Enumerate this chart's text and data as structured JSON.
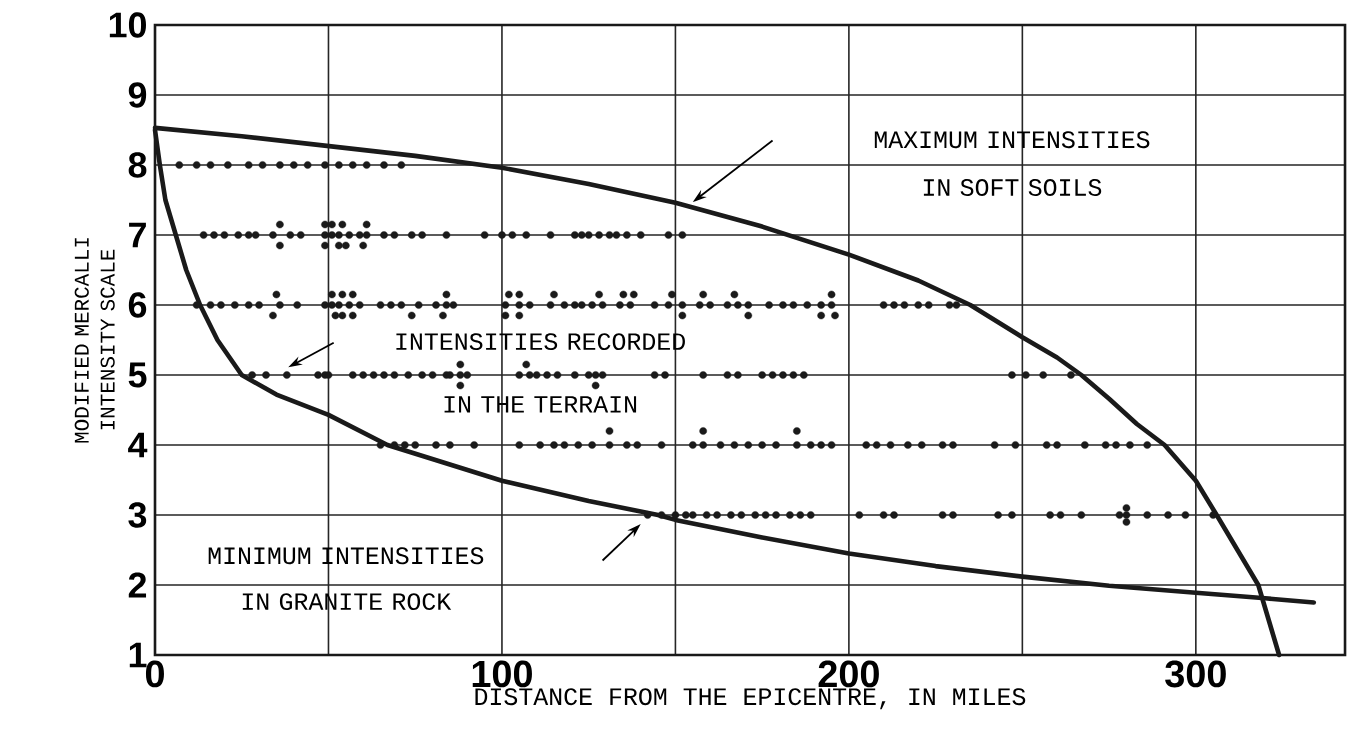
{
  "chart_data": {
    "type": "scatter",
    "xlabel": "DISTANCE FROM THE EPICENTRE, IN MILES",
    "ylabel": "MODIFIED MERCALLI INTENSITY SCALE",
    "annotations": [
      "MAXIMUM INTENSITIES IN SOFT SOILS",
      "INTENSITIES RECORDED IN THE TERRAIN",
      "MINIMUM INTENSITIES IN GRANITE ROCK"
    ],
    "xlim": [
      0,
      343
    ],
    "ylim": [
      1,
      10
    ],
    "xticks": [
      0,
      {
        "value": 50,
        "label": null
      },
      100,
      {
        "value": 150,
        "label": null
      },
      200,
      {
        "value": 250,
        "label": null
      },
      300
    ],
    "yticks": [
      1,
      2,
      3,
      4,
      5,
      6,
      7,
      8,
      9,
      10
    ],
    "grid": true,
    "marker": "circle",
    "series": [
      {
        "color": "#1a1a1a",
        "x": [
          7,
          12,
          16,
          21,
          27,
          31,
          36,
          40,
          44,
          49,
          53,
          57,
          61,
          66,
          71
        ],
        "values": [
          8,
          8,
          8,
          8,
          8,
          8,
          8,
          8,
          8,
          8,
          8,
          8,
          8,
          8,
          8
        ]
      },
      {
        "color": "#1a1a1a",
        "x": [
          36,
          49,
          51,
          54,
          61
        ],
        "values": [
          7.15,
          7.15,
          7.15,
          7.15,
          7.15
        ]
      },
      {
        "color": "#1a1a1a",
        "x": [
          14,
          17,
          20,
          24,
          27,
          29,
          34,
          39,
          42,
          49,
          51,
          53,
          56,
          59,
          61,
          66,
          69,
          74,
          77,
          84,
          95,
          100,
          103,
          107,
          114,
          121,
          123,
          125,
          128,
          131,
          133,
          136,
          140,
          148,
          152
        ],
        "values": [
          7,
          7,
          7,
          7,
          7,
          7,
          7,
          7,
          7,
          7,
          7,
          7,
          7,
          7,
          7,
          7,
          7,
          7,
          7,
          7,
          7,
          7,
          7,
          7,
          7,
          7,
          7,
          7,
          7,
          7,
          7,
          7,
          7,
          7,
          7
        ]
      },
      {
        "color": "#1a1a1a",
        "x": [
          36,
          49,
          53,
          55,
          60
        ],
        "values": [
          6.85,
          6.85,
          6.85,
          6.85,
          6.85
        ]
      },
      {
        "color": "#1a1a1a",
        "x": [
          35,
          51,
          54,
          57,
          84,
          102,
          105,
          115,
          128,
          135,
          138,
          149,
          158,
          167,
          195
        ],
        "values": [
          6.15,
          6.15,
          6.15,
          6.15,
          6.15,
          6.15,
          6.15,
          6.15,
          6.15,
          6.15,
          6.15,
          6.15,
          6.15,
          6.15,
          6.15
        ]
      },
      {
        "color": "#1a1a1a",
        "x": [
          12,
          16,
          19,
          23,
          27,
          30,
          36,
          41,
          49,
          51,
          53,
          56,
          59,
          65,
          68,
          71,
          76,
          81,
          84,
          86,
          101,
          105,
          108,
          114,
          118,
          121,
          123,
          126,
          129,
          134,
          137,
          144,
          148,
          152,
          157,
          160,
          165,
          168,
          171,
          177,
          181,
          184,
          188,
          192,
          195,
          210,
          213,
          216,
          220,
          223,
          229,
          231
        ],
        "values": [
          6,
          6,
          6,
          6,
          6,
          6,
          6,
          6,
          6,
          6,
          6,
          6,
          6,
          6,
          6,
          6,
          6,
          6,
          6,
          6,
          6,
          6,
          6,
          6,
          6,
          6,
          6,
          6,
          6,
          6,
          6,
          6,
          6,
          6,
          6,
          6,
          6,
          6,
          6,
          6,
          6,
          6,
          6,
          6,
          6,
          6,
          6,
          6,
          6,
          6,
          6,
          6
        ]
      },
      {
        "color": "#1a1a1a",
        "x": [
          34,
          52,
          54,
          57,
          74,
          83,
          101,
          105,
          152,
          171,
          192,
          196
        ],
        "values": [
          5.85,
          5.85,
          5.85,
          5.85,
          5.85,
          5.85,
          5.85,
          5.85,
          5.85,
          5.85,
          5.85,
          5.85
        ]
      },
      {
        "color": "#1a1a1a",
        "x": [
          88,
          107
        ],
        "values": [
          5.15,
          5.15
        ]
      },
      {
        "color": "#1a1a1a",
        "x": [
          28,
          32,
          38,
          47,
          49,
          50,
          57,
          60,
          63,
          66,
          69,
          73,
          77,
          80,
          84,
          85,
          88,
          90,
          105,
          108,
          110,
          113,
          116,
          121,
          125,
          127,
          129,
          144,
          147,
          158,
          165,
          168,
          175,
          178,
          181,
          184,
          187,
          247,
          251,
          256,
          264
        ],
        "values": [
          5,
          5,
          5,
          5,
          5,
          5,
          5,
          5,
          5,
          5,
          5,
          5,
          5,
          5,
          5,
          5,
          5,
          5,
          5,
          5,
          5,
          5,
          5,
          5,
          5,
          5,
          5,
          5,
          5,
          5,
          5,
          5,
          5,
          5,
          5,
          5,
          5,
          5,
          5,
          5,
          5
        ]
      },
      {
        "color": "#1a1a1a",
        "x": [
          88,
          127
        ],
        "values": [
          4.85,
          4.85
        ]
      },
      {
        "color": "#1a1a1a",
        "x": [
          131,
          158,
          185
        ],
        "values": [
          4.2,
          4.2,
          4.2
        ]
      },
      {
        "color": "#1a1a1a",
        "x": [
          65,
          69,
          72,
          75,
          81,
          85,
          92,
          105,
          111,
          115,
          118,
          122,
          126,
          131,
          136,
          139,
          146,
          155,
          158,
          163,
          167,
          171,
          175,
          179,
          185,
          189,
          192,
          195,
          205,
          208,
          212,
          217,
          221,
          227,
          230,
          242,
          248,
          257,
          260,
          268,
          274,
          277,
          281,
          286
        ],
        "values": [
          4,
          4,
          4,
          4,
          4,
          4,
          4,
          4,
          4,
          4,
          4,
          4,
          4,
          4,
          4,
          4,
          4,
          4,
          4,
          4,
          4,
          4,
          4,
          4,
          4,
          4,
          4,
          4,
          4,
          4,
          4,
          4,
          4,
          4,
          4,
          4,
          4,
          4,
          4,
          4,
          4,
          4,
          4,
          4
        ]
      },
      {
        "color": "#1a1a1a",
        "x": [
          280
        ],
        "values": [
          3.1
        ]
      },
      {
        "color": "#1a1a1a",
        "x": [
          142,
          146,
          150,
          153,
          155,
          159,
          162,
          166,
          169,
          173,
          176,
          179,
          183,
          186,
          189,
          203,
          210,
          213,
          227,
          230,
          243,
          247,
          258,
          261,
          267,
          278,
          280,
          286,
          292,
          297,
          305
        ],
        "values": [
          3,
          3,
          3,
          3,
          3,
          3,
          3,
          3,
          3,
          3,
          3,
          3,
          3,
          3,
          3,
          3,
          3,
          3,
          3,
          3,
          3,
          3,
          3,
          3,
          3,
          3,
          3,
          3,
          3,
          3,
          3
        ]
      },
      {
        "color": "#1a1a1a",
        "x": [
          280
        ],
        "values": [
          2.9
        ]
      },
      {
        "type": "line",
        "marker": "none",
        "color": "#1a1a1a",
        "x": [
          0,
          25,
          50,
          75,
          100,
          125,
          150,
          175,
          200,
          220,
          235,
          250,
          260,
          267,
          275,
          283,
          291,
          300,
          306,
          312,
          318,
          321,
          324
        ],
        "values": [
          8.53,
          8.41,
          8.27,
          8.13,
          7.96,
          7.73,
          7.46,
          7.12,
          6.72,
          6.35,
          6.0,
          5.54,
          5.25,
          5.0,
          4.66,
          4.3,
          4.0,
          3.49,
          3.0,
          2.5,
          2.0,
          1.5,
          1.0
        ]
      },
      {
        "type": "line",
        "marker": "none",
        "color": "#1a1a1a",
        "x": [
          0,
          1.4,
          3,
          6,
          9,
          13,
          18,
          25,
          35,
          50,
          67,
          100,
          125,
          145,
          150,
          175,
          200,
          225,
          250,
          275,
          300,
          320,
          334
        ],
        "values": [
          8.5,
          8.0,
          7.5,
          7.0,
          6.5,
          6.0,
          5.5,
          5.0,
          4.72,
          4.43,
          4.0,
          3.49,
          3.2,
          3.0,
          2.93,
          2.68,
          2.45,
          2.27,
          2.12,
          1.99,
          1.89,
          1.81,
          1.75
        ]
      }
    ]
  }
}
